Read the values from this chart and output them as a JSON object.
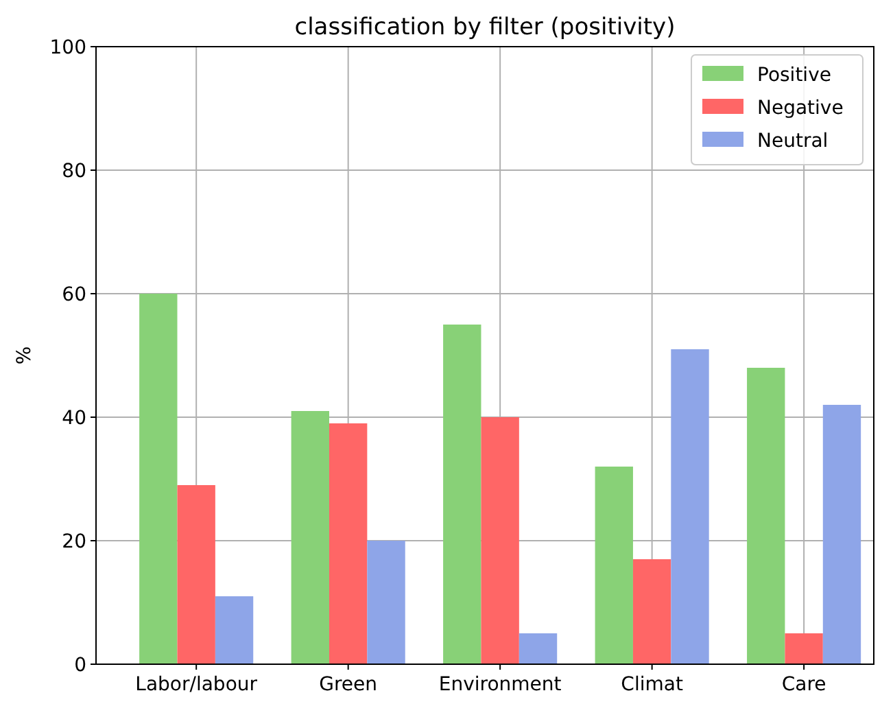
{
  "chart_data": {
    "type": "bar",
    "title": "classification by filter (positivity)",
    "ylabel": "%",
    "categories": [
      "Labor/labour",
      "Green",
      "Environment",
      "Climat",
      "Care"
    ],
    "series": [
      {
        "name": "Positive",
        "color": "#88d177",
        "values": [
          60,
          41,
          55,
          32,
          48
        ]
      },
      {
        "name": "Negative",
        "color": "#ff6666",
        "values": [
          29,
          39,
          40,
          17,
          5
        ]
      },
      {
        "name": "Neutral",
        "color": "#8ea5e8",
        "values": [
          11,
          20,
          5,
          51,
          42
        ]
      }
    ],
    "ylim": [
      0,
      100
    ],
    "yticks": [
      0,
      20,
      40,
      60,
      80,
      100
    ],
    "grid": true,
    "legend": "top right"
  }
}
